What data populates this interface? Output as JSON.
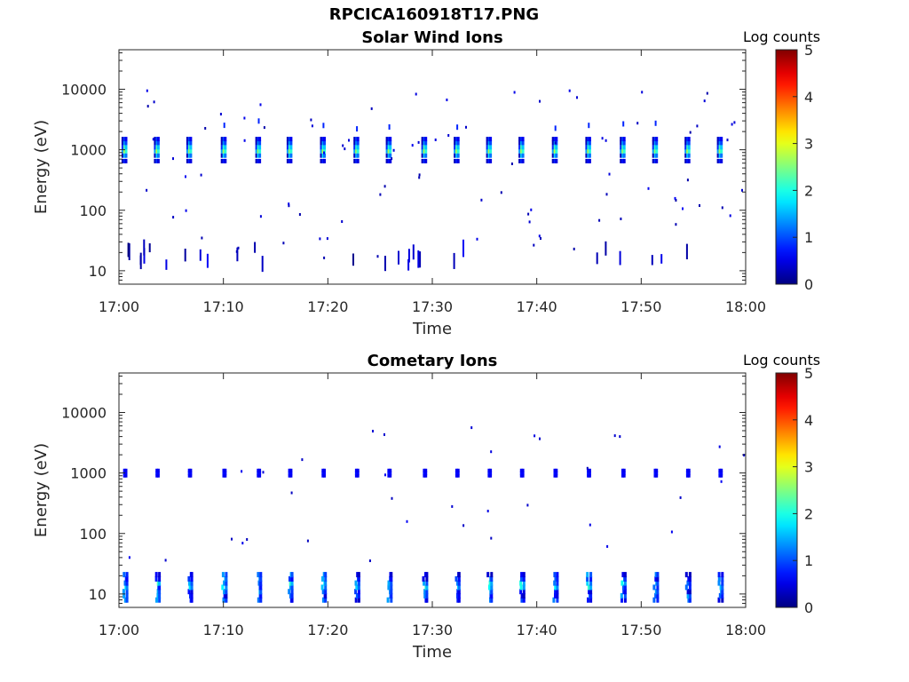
{
  "figure": {
    "title": "RPCICA160918T17.PNG"
  },
  "chart_data": [
    {
      "type": "heatmap",
      "title": "Solar Wind Ions",
      "xlabel": "Time",
      "ylabel": "Energy (eV)",
      "y_scale": "log",
      "y_ticks": [
        10,
        100,
        1000,
        10000
      ],
      "y_tick_labels": [
        "10",
        "100",
        "1000",
        "10000"
      ],
      "ylim": [
        6,
        45000
      ],
      "x_ticks": [
        "17:00",
        "17:10",
        "17:20",
        "17:30",
        "17:40",
        "17:50",
        "18:00"
      ],
      "x_tick_minutes": [
        0,
        10,
        20,
        30,
        40,
        50,
        60
      ],
      "xlim_minutes": [
        0,
        60
      ],
      "colorbar": {
        "label": "Log counts",
        "min": 0,
        "max": 5,
        "ticks": [
          0,
          1,
          2,
          3,
          4,
          5
        ],
        "colormap": "jet"
      },
      "sweep_peaks_minutes": [
        0.5,
        3.6,
        6.7,
        10.0,
        13.3,
        16.3,
        19.5,
        22.7,
        25.8,
        29.2,
        32.3,
        35.4,
        38.5,
        41.7,
        44.9,
        48.2,
        51.3,
        54.4,
        57.5
      ],
      "sweep_peak_energy_eV": 1000,
      "sweep_peak_log_counts": 2.6,
      "low_energy_band_eV": [
        10,
        25
      ],
      "low_energy_band_log_counts": 0.6
    },
    {
      "type": "heatmap",
      "title": "Cometary Ions",
      "xlabel": "Time",
      "ylabel": "Energy (eV)",
      "y_scale": "log",
      "y_ticks": [
        10,
        100,
        1000,
        10000
      ],
      "y_tick_labels": [
        "10",
        "100",
        "1000",
        "10000"
      ],
      "ylim": [
        6,
        45000
      ],
      "x_ticks": [
        "17:00",
        "17:10",
        "17:20",
        "17:30",
        "17:40",
        "17:50",
        "18:00"
      ],
      "x_tick_minutes": [
        0,
        10,
        20,
        30,
        40,
        50,
        60
      ],
      "xlim_minutes": [
        0,
        60
      ],
      "colorbar": {
        "label": "Log counts",
        "min": 0,
        "max": 5,
        "ticks": [
          0,
          1,
          2,
          3,
          4,
          5
        ],
        "colormap": "jet"
      },
      "sweep_peaks_minutes": [
        0.5,
        3.6,
        6.7,
        10.0,
        13.3,
        16.3,
        19.5,
        22.7,
        25.8,
        29.2,
        32.3,
        35.4,
        38.5,
        41.7,
        44.9,
        48.2,
        51.3,
        54.4,
        57.5
      ],
      "band_1000eV_log_counts": 0.7,
      "low_energy_band_eV": [
        7,
        25
      ],
      "low_energy_band_log_counts": 1.2
    }
  ]
}
